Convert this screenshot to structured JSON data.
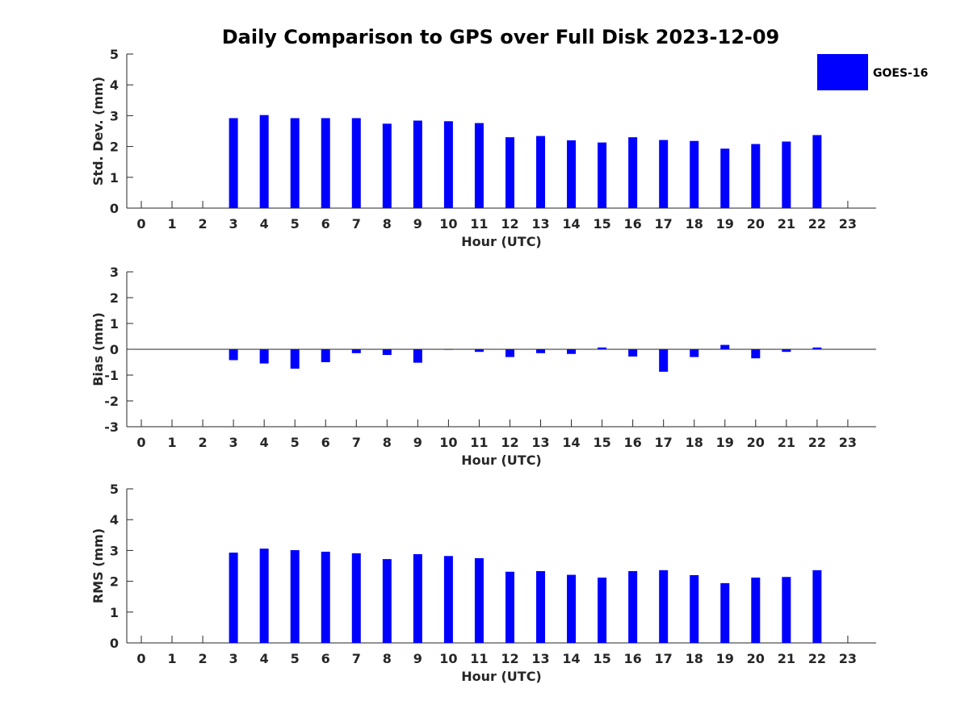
{
  "chart_data": {
    "title": "Daily Comparison to GPS over Full Disk 2023-12-09",
    "type": "bar",
    "legend": {
      "label": "GOES-16",
      "color": "#0000ff",
      "placement": "top-right"
    },
    "bar_color": "#0000ff",
    "panels": [
      {
        "name": "std-dev",
        "xlabel": "Hour (UTC)",
        "ylabel": "Std. Dev. (mm)",
        "ylim": [
          0,
          5
        ],
        "yticks": [
          0,
          1,
          2,
          3,
          4,
          5
        ],
        "zero_line": false,
        "x": [
          0,
          1,
          2,
          3,
          4,
          5,
          6,
          7,
          8,
          9,
          10,
          11,
          12,
          13,
          14,
          15,
          16,
          17,
          18,
          19,
          20,
          21,
          22,
          23
        ],
        "values": [
          null,
          null,
          null,
          2.92,
          3.02,
          2.92,
          2.92,
          2.92,
          2.74,
          2.84,
          2.82,
          2.76,
          2.3,
          2.34,
          2.2,
          2.13,
          2.3,
          2.21,
          2.18,
          1.93,
          2.08,
          2.16,
          2.37,
          null
        ]
      },
      {
        "name": "bias",
        "xlabel": "Hour (UTC)",
        "ylabel": "Bias (mm)",
        "ylim": [
          -3,
          3
        ],
        "yticks": [
          -3,
          -2,
          -1,
          0,
          1,
          2,
          3
        ],
        "zero_line": true,
        "x": [
          0,
          1,
          2,
          3,
          4,
          5,
          6,
          7,
          8,
          9,
          10,
          11,
          12,
          13,
          14,
          15,
          16,
          17,
          18,
          19,
          20,
          21,
          22,
          23
        ],
        "values": [
          null,
          null,
          null,
          -0.42,
          -0.55,
          -0.75,
          -0.5,
          -0.15,
          -0.22,
          -0.52,
          -0.02,
          -0.1,
          -0.3,
          -0.15,
          -0.18,
          0.07,
          -0.28,
          -0.87,
          -0.3,
          0.17,
          -0.35,
          -0.1,
          0.07,
          null
        ]
      },
      {
        "name": "rms",
        "xlabel": "Hour (UTC)",
        "ylabel": "RMS (mm)",
        "ylim": [
          0,
          5
        ],
        "yticks": [
          0,
          1,
          2,
          3,
          4,
          5
        ],
        "zero_line": false,
        "x": [
          0,
          1,
          2,
          3,
          4,
          5,
          6,
          7,
          8,
          9,
          10,
          11,
          12,
          13,
          14,
          15,
          16,
          17,
          18,
          19,
          20,
          21,
          22,
          23
        ],
        "values": [
          null,
          null,
          null,
          2.93,
          3.06,
          3.01,
          2.96,
          2.91,
          2.72,
          2.88,
          2.82,
          2.75,
          2.31,
          2.33,
          2.21,
          2.12,
          2.33,
          2.36,
          2.2,
          1.94,
          2.12,
          2.14,
          2.36,
          null
        ]
      }
    ]
  }
}
